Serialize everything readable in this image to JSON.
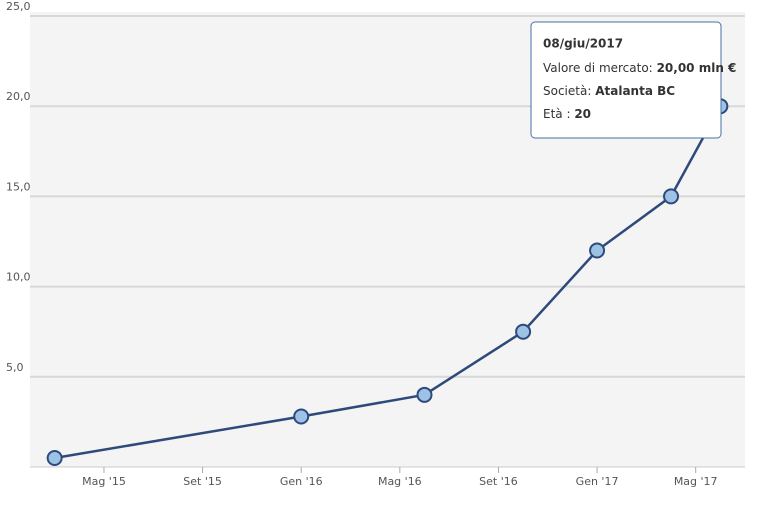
{
  "chart_data": {
    "type": "line",
    "x": [
      "2015-03",
      "2016-01",
      "2016-06",
      "2016-10",
      "2017-01",
      "2017-04",
      "2017-06"
    ],
    "series": [
      {
        "name": "Valore di mercato",
        "color": "#2e4a7a",
        "values": [
          0.5,
          2.8,
          4.0,
          7.5,
          12.0,
          15.0,
          20.0
        ]
      }
    ],
    "xlim": [
      "2015-02",
      "2017-07"
    ],
    "xticks": [
      {
        "value": "2015-05",
        "label": "Mag '15"
      },
      {
        "value": "2015-09",
        "label": "Set '15"
      },
      {
        "value": "2016-01",
        "label": "Gen '16"
      },
      {
        "value": "2016-05",
        "label": "Mag '16"
      },
      {
        "value": "2016-09",
        "label": "Set '16"
      },
      {
        "value": "2017-01",
        "label": "Gen '17"
      },
      {
        "value": "2017-05",
        "label": "Mag '17"
      }
    ],
    "ylim": [
      0,
      25
    ],
    "yticks": [
      {
        "value": 5,
        "label": "5,0"
      },
      {
        "value": 10,
        "label": "10,0"
      },
      {
        "value": 15,
        "label": "15,0"
      },
      {
        "value": 20,
        "label": "20,0"
      },
      {
        "value": 25,
        "label": "25,0"
      }
    ],
    "grid": true,
    "tooltip": {
      "date": "08/giu/2017",
      "value_label": "Valore di mercato:",
      "value": "20,00 mln €",
      "club_label": "Società:",
      "club": "Atalanta BC",
      "age_label": "Età :",
      "age": "20"
    }
  }
}
